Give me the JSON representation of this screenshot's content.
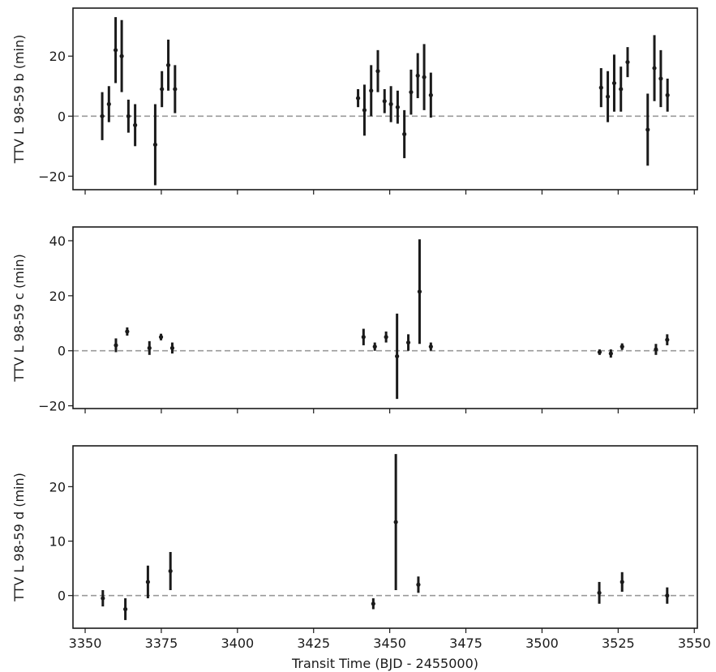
{
  "chart_data": {
    "type": "scatter",
    "style": "errorbar",
    "shared_x": true,
    "xlabel": "Transit Time (BJD - 2455000)",
    "xlim": [
      3346,
      3551
    ],
    "x_ticks": [
      3350,
      3375,
      3400,
      3425,
      3450,
      3475,
      3500,
      3525,
      3550
    ],
    "reference_line": {
      "y": 0,
      "style": "dashed",
      "color": "#999999"
    },
    "marker_color": "#1a1a1a",
    "panels": [
      {
        "ylabel": "TTV L 98-59 b (min)",
        "ylim": [
          -24.5,
          36
        ],
        "y_ticks": [
          -20,
          0,
          20
        ],
        "points": [
          {
            "x": 3355.6,
            "y": 0.0,
            "err": 8.0
          },
          {
            "x": 3357.8,
            "y": 4.0,
            "err": 6.0
          },
          {
            "x": 3360.0,
            "y": 22.0,
            "err": 11.0
          },
          {
            "x": 3362.0,
            "y": 20.0,
            "err": 12.0
          },
          {
            "x": 3364.2,
            "y": 0.0,
            "err": 5.5
          },
          {
            "x": 3366.4,
            "y": -3.0,
            "err": 7.0
          },
          {
            "x": 3373.0,
            "y": -9.5,
            "err": 13.5
          },
          {
            "x": 3375.2,
            "y": 9.0,
            "err": 6.0
          },
          {
            "x": 3377.3,
            "y": 17.0,
            "err": 8.5
          },
          {
            "x": 3379.5,
            "y": 9.0,
            "err": 8.0
          },
          {
            "x": 3439.6,
            "y": 6.0,
            "err": 3.0
          },
          {
            "x": 3441.7,
            "y": 2.0,
            "err": 8.5
          },
          {
            "x": 3443.9,
            "y": 8.5,
            "err": 8.5
          },
          {
            "x": 3446.1,
            "y": 15.0,
            "err": 7.0
          },
          {
            "x": 3448.3,
            "y": 5.0,
            "err": 4.0
          },
          {
            "x": 3450.4,
            "y": 4.0,
            "err": 6.0
          },
          {
            "x": 3452.6,
            "y": 3.0,
            "err": 5.5
          },
          {
            "x": 3454.8,
            "y": -6.0,
            "err": 8.0
          },
          {
            "x": 3457.0,
            "y": 8.0,
            "err": 7.5
          },
          {
            "x": 3459.2,
            "y": 13.5,
            "err": 7.5
          },
          {
            "x": 3461.3,
            "y": 13.0,
            "err": 11.0
          },
          {
            "x": 3463.5,
            "y": 7.0,
            "err": 7.5
          },
          {
            "x": 3519.4,
            "y": 9.5,
            "err": 6.5
          },
          {
            "x": 3521.6,
            "y": 6.5,
            "err": 8.5
          },
          {
            "x": 3523.7,
            "y": 11.0,
            "err": 9.5
          },
          {
            "x": 3525.9,
            "y": 9.0,
            "err": 7.5
          },
          {
            "x": 3528.1,
            "y": 18.0,
            "err": 5.0
          },
          {
            "x": 3534.7,
            "y": -4.5,
            "err": 12.0
          },
          {
            "x": 3536.9,
            "y": 16.0,
            "err": 11.0
          },
          {
            "x": 3539.0,
            "y": 12.5,
            "err": 9.5
          },
          {
            "x": 3541.2,
            "y": 7.0,
            "err": 5.5
          }
        ]
      },
      {
        "ylabel": "TTV L 98-59 c (min)",
        "ylim": [
          -21,
          45
        ],
        "y_ticks": [
          -20,
          0,
          20,
          40
        ],
        "points": [
          {
            "x": 3360.1,
            "y": 2.0,
            "err": 2.5
          },
          {
            "x": 3363.8,
            "y": 7.0,
            "err": 1.5
          },
          {
            "x": 3371.1,
            "y": 1.0,
            "err": 2.5
          },
          {
            "x": 3374.9,
            "y": 5.0,
            "err": 1.2
          },
          {
            "x": 3378.6,
            "y": 1.0,
            "err": 2.0
          },
          {
            "x": 3441.4,
            "y": 5.0,
            "err": 3.0
          },
          {
            "x": 3445.1,
            "y": 1.5,
            "err": 1.5
          },
          {
            "x": 3448.8,
            "y": 5.0,
            "err": 2.0
          },
          {
            "x": 3452.4,
            "y": -2.0,
            "err": 15.5
          },
          {
            "x": 3456.1,
            "y": 3.0,
            "err": 3.0
          },
          {
            "x": 3459.8,
            "y": 21.5,
            "err": 19.0
          },
          {
            "x": 3463.5,
            "y": 1.5,
            "err": 1.5
          },
          {
            "x": 3518.9,
            "y": -0.5,
            "err": 1.0
          },
          {
            "x": 3522.6,
            "y": -1.0,
            "err": 1.5
          },
          {
            "x": 3526.3,
            "y": 1.5,
            "err": 1.2
          },
          {
            "x": 3537.4,
            "y": 0.5,
            "err": 2.0
          },
          {
            "x": 3541.1,
            "y": 4.0,
            "err": 2.0
          }
        ]
      },
      {
        "ylabel": "TTV L 98-59 d (min)",
        "ylim": [
          -6,
          27.5
        ],
        "y_ticks": [
          0,
          10,
          20
        ],
        "points": [
          {
            "x": 3355.8,
            "y": -0.5,
            "err": 1.5
          },
          {
            "x": 3363.2,
            "y": -2.5,
            "err": 2.0
          },
          {
            "x": 3370.6,
            "y": 2.5,
            "err": 3.0
          },
          {
            "x": 3378.0,
            "y": 4.5,
            "err": 3.5
          },
          {
            "x": 3444.6,
            "y": -1.5,
            "err": 1.0
          },
          {
            "x": 3452.0,
            "y": 13.5,
            "err": 12.5
          },
          {
            "x": 3459.4,
            "y": 2.0,
            "err": 1.5
          },
          {
            "x": 3518.8,
            "y": 0.5,
            "err": 2.0
          },
          {
            "x": 3526.3,
            "y": 2.5,
            "err": 1.8
          },
          {
            "x": 3541.1,
            "y": 0.0,
            "err": 1.5
          }
        ]
      }
    ]
  }
}
